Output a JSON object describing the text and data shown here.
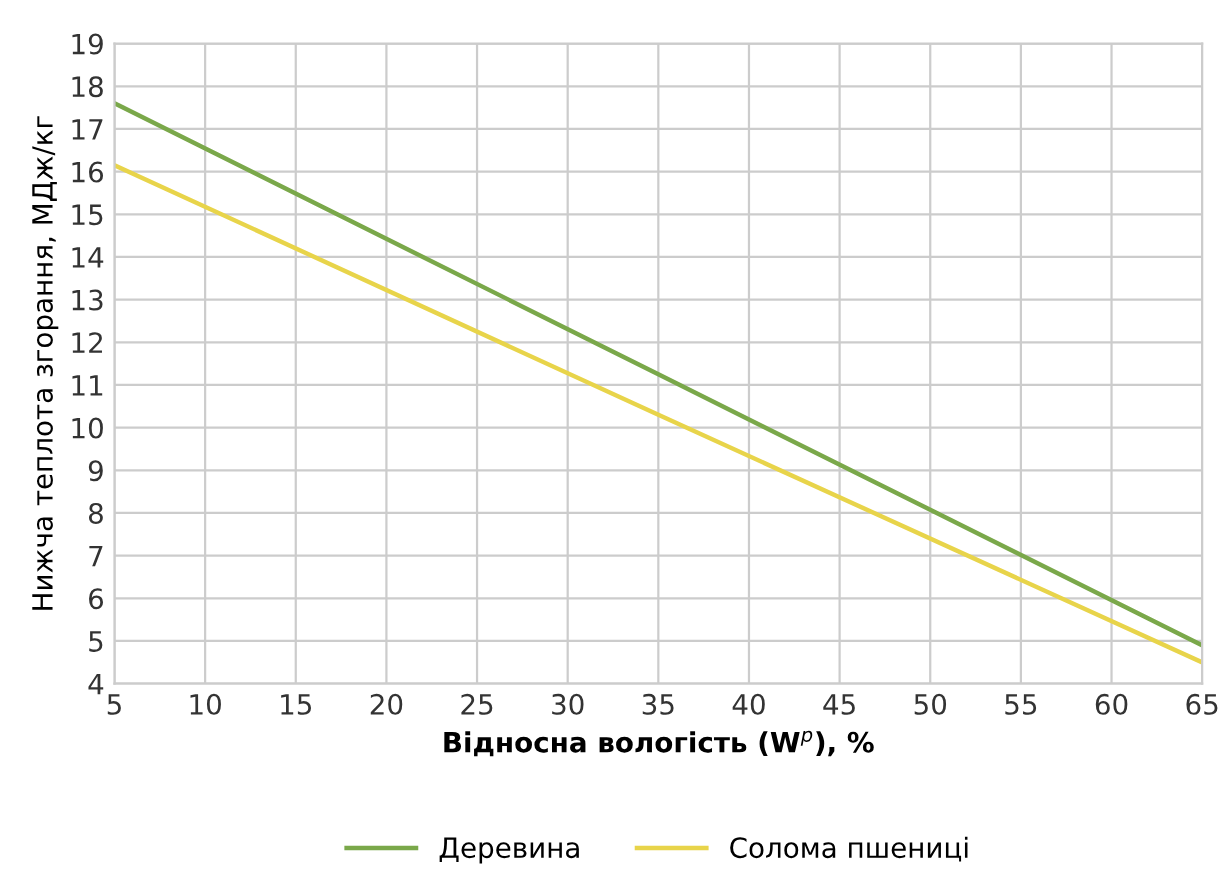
{
  "chart_data": {
    "type": "line",
    "xlabel": "Відносна вологість (W$^{p}$), %",
    "ylabel": "Нижча теплота згорання, МДж/кг",
    "x": [
      5,
      35,
      65
    ],
    "series": [
      {
        "name": "Деревина",
        "color": "#7aa84a",
        "values": [
          17.6,
          11.25,
          4.9
        ]
      },
      {
        "name": "Солома пшениці",
        "color": "#e8d44a",
        "values": [
          16.15,
          10.3,
          4.5
        ]
      }
    ],
    "xlim": [
      5,
      65
    ],
    "xticks": [
      5,
      10,
      15,
      20,
      25,
      30,
      35,
      40,
      45,
      50,
      55,
      60,
      65
    ],
    "ylim": [
      4,
      19
    ],
    "yticks": [
      4,
      5,
      6,
      7,
      8,
      9,
      10,
      11,
      12,
      13,
      14,
      15,
      16,
      17,
      18,
      19
    ],
    "grid": true,
    "legend": "bottom",
    "marker": "none",
    "line_style": "solid"
  }
}
